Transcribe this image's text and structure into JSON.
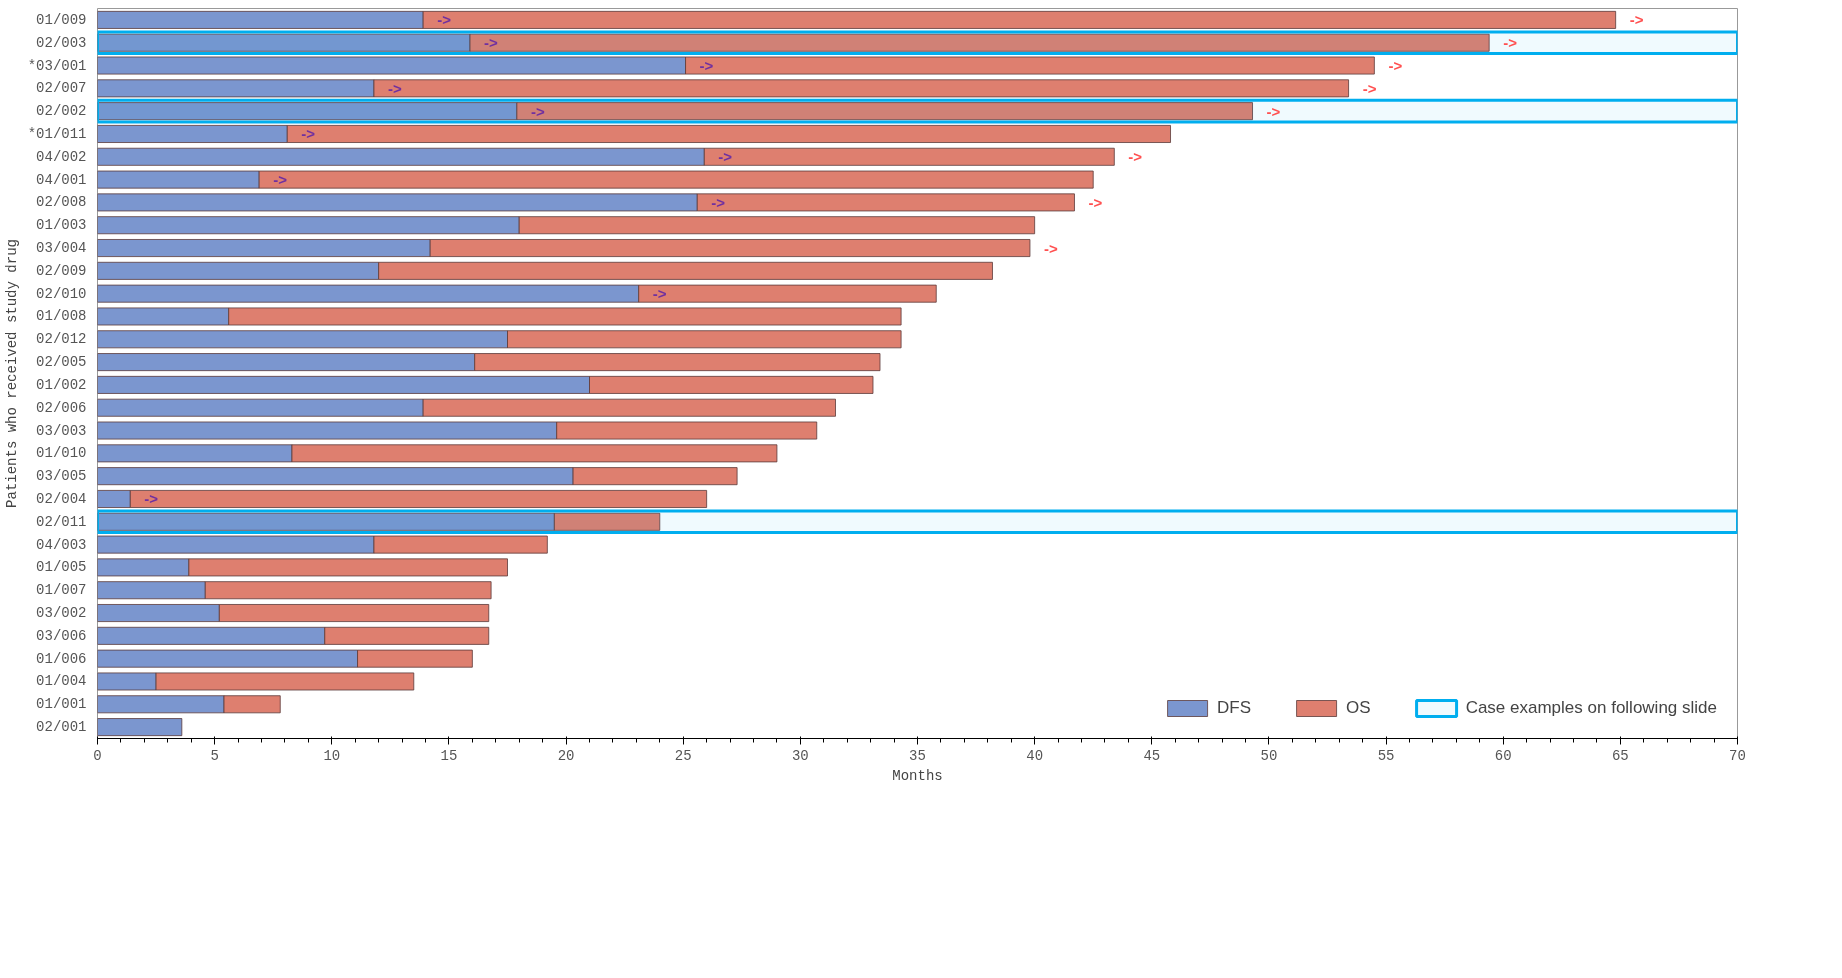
{
  "chart_data": {
    "type": "bar",
    "orientation": "horizontal",
    "stacked": true,
    "xlabel": "Months",
    "ylabel": "Patients who received study drug",
    "categories": [
      "01/009",
      "02/003",
      "*03/001",
      "02/007",
      "02/002",
      "*01/011",
      "04/002",
      "04/001",
      "02/008",
      "01/003",
      "03/004",
      "02/009",
      "02/010",
      "01/008",
      "02/012",
      "02/005",
      "01/002",
      "02/006",
      "03/003",
      "01/010",
      "03/005",
      "02/004",
      "02/011",
      "04/003",
      "01/005",
      "01/007",
      "03/002",
      "03/006",
      "01/006",
      "01/004",
      "01/001",
      "02/001"
    ],
    "series": [
      {
        "name": "DFS",
        "color": "#7b96cf",
        "values": [
          13.9,
          15.9,
          25.1,
          11.8,
          17.9,
          8.1,
          25.9,
          6.9,
          25.6,
          18.0,
          14.2,
          12.0,
          23.1,
          5.6,
          17.5,
          16.1,
          21.0,
          13.9,
          19.6,
          8.3,
          20.3,
          1.4,
          19.5,
          11.8,
          3.9,
          4.6,
          5.2,
          9.7,
          11.1,
          2.5,
          5.4,
          3.6
        ],
        "value_labels": [
          "->",
          "->",
          "->",
          "->",
          "->",
          "->",
          "->",
          "->",
          "->",
          null,
          null,
          null,
          "->",
          null,
          null,
          null,
          null,
          null,
          null,
          null,
          null,
          "->",
          null,
          null,
          null,
          null,
          null,
          null,
          null,
          null,
          null,
          null
        ]
      },
      {
        "name": "OS",
        "color": "#de7f6f",
        "values": [
          50.9,
          43.5,
          29.4,
          41.6,
          31.4,
          37.7,
          17.5,
          35.6,
          16.1,
          22.0,
          25.6,
          26.2,
          12.7,
          28.7,
          16.8,
          17.3,
          12.1,
          17.6,
          11.1,
          20.7,
          7.0,
          24.6,
          4.5,
          7.4,
          13.6,
          12.2,
          11.5,
          7.0,
          4.9,
          11.0,
          2.4,
          null
        ],
        "value_labels": [
          "->",
          "->",
          "->",
          "->",
          "->",
          null,
          "->",
          null,
          "->",
          null,
          "->",
          null,
          null,
          null,
          null,
          null,
          null,
          null,
          null,
          null,
          null,
          null,
          null,
          null,
          null,
          null,
          null,
          null,
          null,
          null,
          null,
          null
        ]
      }
    ],
    "bands": [
      {
        "axis": "y",
        "from": "02/003",
        "to": "02/003",
        "label": "Case examples on following slide",
        "color": "#00aeef"
      },
      {
        "axis": "y",
        "from": "02/002",
        "to": "02/002",
        "color": "#00aeef"
      },
      {
        "axis": "y",
        "from": "02/011",
        "to": "02/011",
        "color": "#00aeef"
      }
    ],
    "xlim": [
      0,
      70
    ],
    "xticks": [
      0,
      5,
      10,
      15,
      20,
      25,
      30,
      35,
      40,
      45,
      50,
      55,
      60,
      65,
      70
    ],
    "grid": false,
    "legend": "bottom right"
  }
}
